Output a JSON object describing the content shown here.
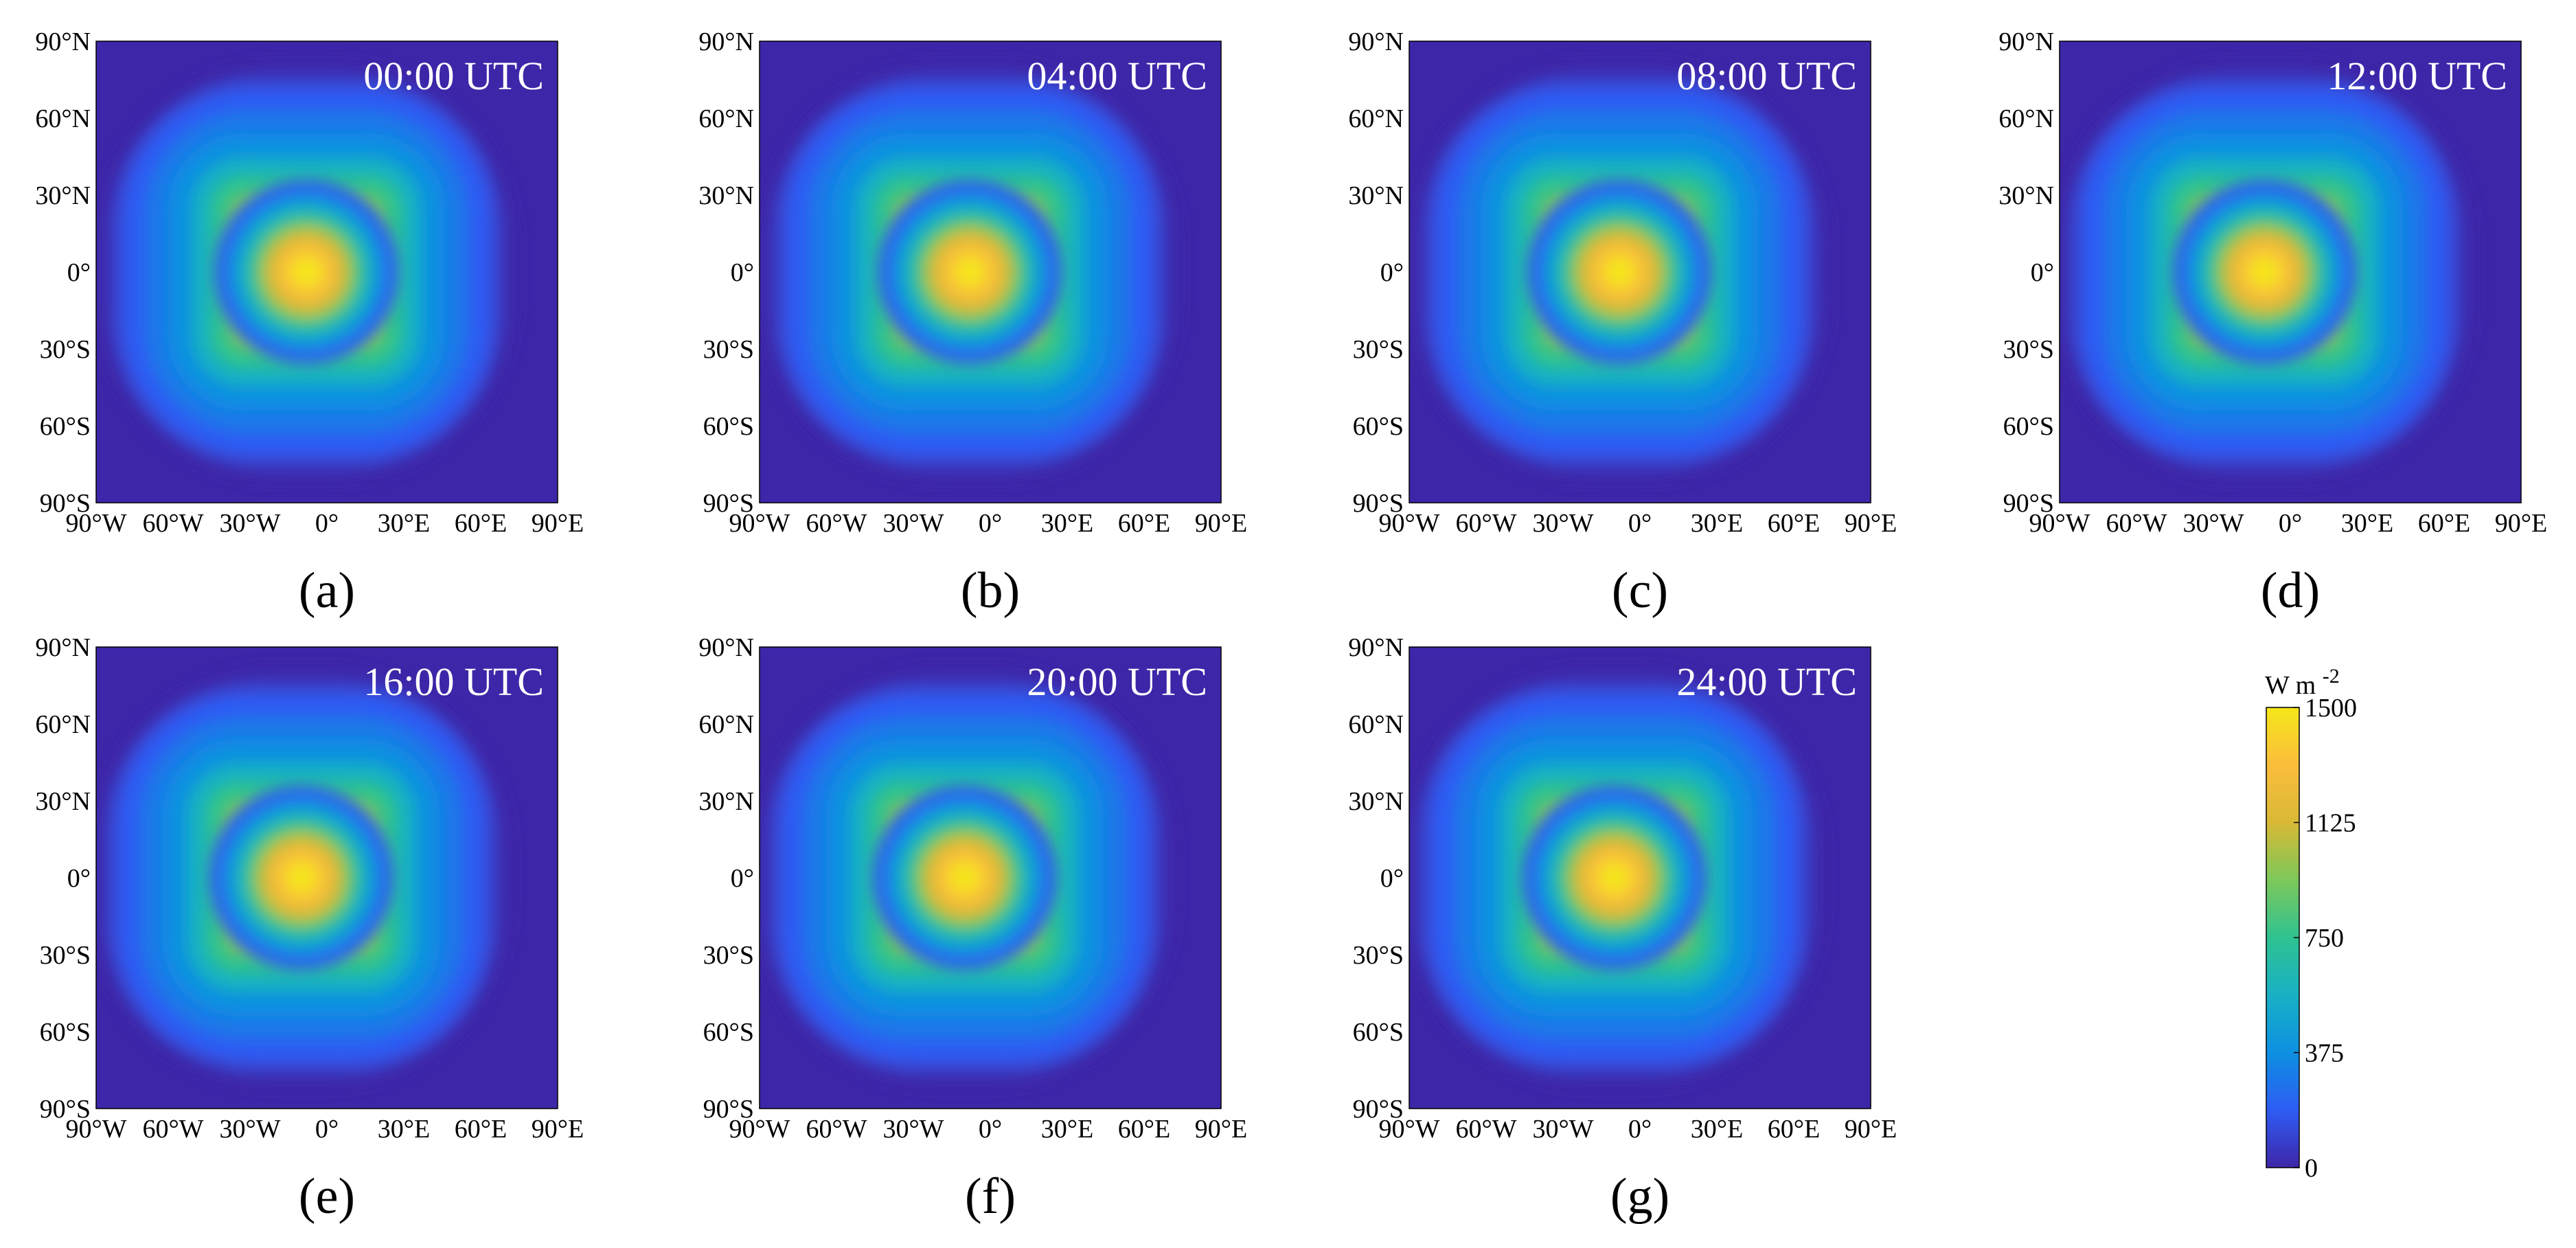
{
  "chart_data": [
    {
      "type": "heatmap",
      "panel_label": "(a)",
      "time_label": "00:00 UTC",
      "center_lon": -8,
      "center_lat": 0,
      "xticks": [
        "90°W",
        "60°W",
        "30°W",
        "0°",
        "30°E",
        "60°E",
        "90°E"
      ],
      "yticks": [
        "90°N",
        "60°N",
        "30°N",
        "0°",
        "30°S",
        "60°S",
        "90°S"
      ],
      "xlim": [
        -90,
        90
      ],
      "ylim": [
        -90,
        90
      ]
    },
    {
      "type": "heatmap",
      "panel_label": "(b)",
      "time_label": "04:00 UTC",
      "center_lon": -8,
      "center_lat": 0,
      "xticks": [
        "90°W",
        "60°W",
        "30°W",
        "0°",
        "30°E",
        "60°E",
        "90°E"
      ],
      "yticks": [
        "90°N",
        "60°N",
        "30°N",
        "0°",
        "30°S",
        "60°S",
        "90°S"
      ],
      "xlim": [
        -90,
        90
      ],
      "ylim": [
        -90,
        90
      ]
    },
    {
      "type": "heatmap",
      "panel_label": "(c)",
      "time_label": "08:00 UTC",
      "center_lon": -8,
      "center_lat": 0,
      "xticks": [
        "90°W",
        "60°W",
        "30°W",
        "0°",
        "30°E",
        "60°E",
        "90°E"
      ],
      "yticks": [
        "90°N",
        "60°N",
        "30°N",
        "0°",
        "30°S",
        "60°S",
        "90°S"
      ],
      "xlim": [
        -90,
        90
      ],
      "ylim": [
        -90,
        90
      ]
    },
    {
      "type": "heatmap",
      "panel_label": "(d)",
      "time_label": "12:00 UTC",
      "center_lon": -10,
      "center_lat": 0,
      "xticks": [
        "90°W",
        "60°W",
        "30°W",
        "0°",
        "30°E",
        "60°E",
        "90°E"
      ],
      "yticks": [
        "90°N",
        "60°N",
        "30°N",
        "0°",
        "30°S",
        "60°S",
        "90°S"
      ],
      "xlim": [
        -90,
        90
      ],
      "ylim": [
        -90,
        90
      ]
    },
    {
      "type": "heatmap",
      "panel_label": "(e)",
      "time_label": "16:00 UTC",
      "center_lon": -10,
      "center_lat": 0,
      "xticks": [
        "90°W",
        "60°W",
        "30°W",
        "0°",
        "30°E",
        "60°E",
        "90°E"
      ],
      "yticks": [
        "90°N",
        "60°N",
        "30°N",
        "0°",
        "30°S",
        "60°S",
        "90°S"
      ],
      "xlim": [
        -90,
        90
      ],
      "ylim": [
        -90,
        90
      ]
    },
    {
      "type": "heatmap",
      "panel_label": "(f)",
      "time_label": "20:00 UTC",
      "center_lon": -10,
      "center_lat": 0,
      "xticks": [
        "90°W",
        "60°W",
        "30°W",
        "0°",
        "30°E",
        "60°E",
        "90°E"
      ],
      "yticks": [
        "90°N",
        "60°N",
        "30°N",
        "0°",
        "30°S",
        "60°S",
        "90°S"
      ],
      "xlim": [
        -90,
        90
      ],
      "ylim": [
        -90,
        90
      ]
    },
    {
      "type": "heatmap",
      "panel_label": "(g)",
      "time_label": "24:00 UTC",
      "center_lon": -10,
      "center_lat": 0,
      "xticks": [
        "90°W",
        "60°W",
        "30°W",
        "0°",
        "30°E",
        "60°E",
        "90°E"
      ],
      "yticks": [
        "90°N",
        "60°N",
        "30°N",
        "0°",
        "30°S",
        "60°S",
        "90°S"
      ],
      "xlim": [
        -90,
        90
      ],
      "ylim": [
        -90,
        90
      ]
    }
  ],
  "field": {
    "peak_value": 1500,
    "edge_value": 0
  },
  "colorbar": {
    "unit_base": "W m",
    "unit_exponent": "-2",
    "ticks": [
      "1500",
      "1125",
      "750",
      "375",
      "0"
    ],
    "tick_values": [
      1500,
      1125,
      750,
      375,
      0
    ],
    "range": [
      0,
      1500
    ],
    "colors": [
      "#3e26a8",
      "#2e5cf3",
      "#0d90e1",
      "#19b0c4",
      "#2fc291",
      "#7dc85a",
      "#d8b936",
      "#fbbd3c",
      "#f5e61a"
    ]
  },
  "colors": {
    "panel_background": "#3e26a8",
    "text_on_panel": "#ffffff"
  }
}
